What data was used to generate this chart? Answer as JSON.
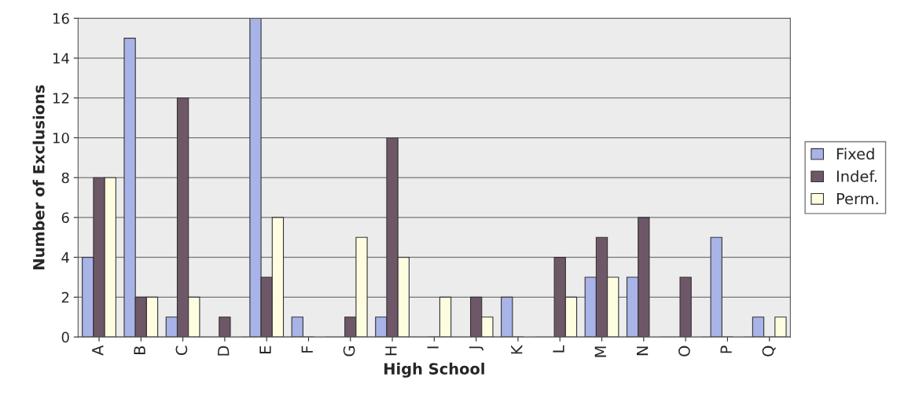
{
  "chart_data": {
    "type": "bar",
    "xlabel": "High School",
    "ylabel": "Number of Exclusions",
    "categories": [
      "A",
      "B",
      "C",
      "D",
      "E",
      "F",
      "G",
      "H",
      "I",
      "J",
      "K",
      "L",
      "M",
      "N",
      "O",
      "P",
      "Q"
    ],
    "series": [
      {
        "name": "Fixed",
        "color": "#a8b4e8",
        "values": [
          4,
          15,
          1,
          0,
          16,
          1,
          0,
          1,
          0,
          0,
          2,
          0,
          3,
          3,
          0,
          5,
          1
        ]
      },
      {
        "name": "Indef.",
        "color": "#6e5868",
        "values": [
          8,
          2,
          12,
          1,
          3,
          0,
          1,
          10,
          0,
          2,
          0,
          4,
          5,
          6,
          3,
          0,
          0
        ]
      },
      {
        "name": "Perm.",
        "color": "#fffde0",
        "values": [
          8,
          2,
          2,
          0,
          6,
          0,
          5,
          4,
          2,
          1,
          0,
          2,
          3,
          0,
          0,
          0,
          1
        ]
      }
    ],
    "ylim": [
      0,
      16
    ],
    "yticks": [
      0,
      2,
      4,
      6,
      8,
      10,
      12,
      14,
      16
    ],
    "grid": "y",
    "legend": "right"
  }
}
